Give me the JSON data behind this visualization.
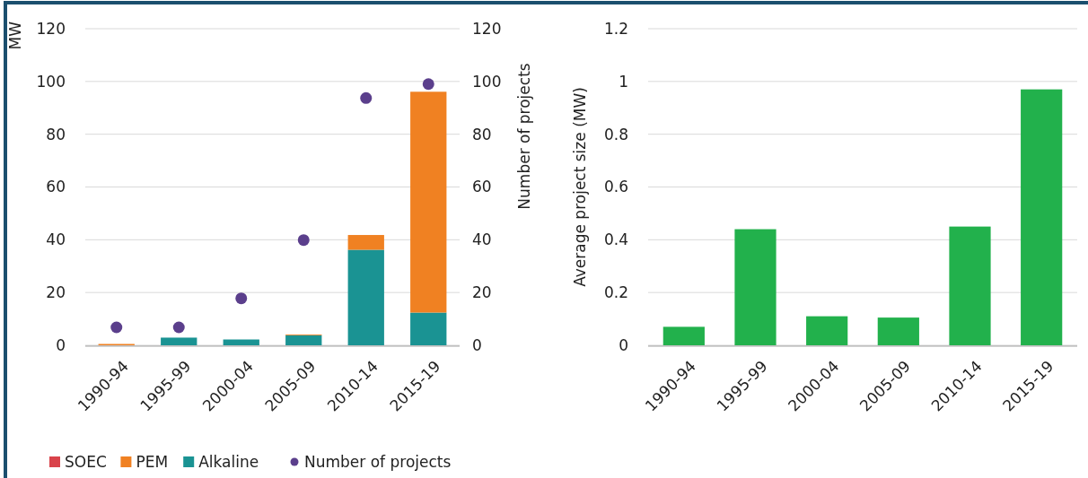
{
  "chart_data": [
    {
      "type": "bar",
      "stacked": true,
      "categories": [
        "1990-94",
        "1995-99",
        "2000-04",
        "2005-09",
        "2010-14",
        "2015-19"
      ],
      "ylabel": "MW",
      "y2label": "Number of projects",
      "ylim": [
        0,
        120
      ],
      "yticks": [
        0,
        20,
        40,
        60,
        80,
        100,
        120
      ],
      "y2lim": [
        0,
        120
      ],
      "y2ticks": [
        0,
        20,
        40,
        60,
        80,
        100,
        120
      ],
      "grid": "y",
      "legend": "bottom",
      "series": [
        {
          "name": "Alkaline",
          "color": "#1a9393",
          "values": [
            0,
            2.9,
            2.2,
            3.8,
            36.2,
            12.4
          ]
        },
        {
          "name": "PEM",
          "color": "#f08122",
          "values": [
            0.5,
            0,
            0,
            0.3,
            5.6,
            83.7
          ]
        },
        {
          "name": "SOEC",
          "color": "#d9434b",
          "values": [
            0,
            0,
            0,
            0,
            0,
            0
          ]
        },
        {
          "name": "Number of projects",
          "type": "scatter",
          "axis": "y2",
          "marker": "circle",
          "color": "#5b3f8c",
          "values": [
            6.8,
            6.8,
            17.8,
            39.9,
            93.7,
            99
          ]
        }
      ]
    },
    {
      "type": "bar",
      "categories": [
        "1990-94",
        "1995-99",
        "2000-04",
        "2005-09",
        "2010-14",
        "2015-19"
      ],
      "ylabel": "Average project size (MW)",
      "ylim": [
        0,
        1.2
      ],
      "yticks": [
        0,
        0.2,
        0.4,
        0.6,
        0.8,
        1,
        1.2
      ],
      "grid": "y",
      "color": "#22b14c",
      "values": [
        0.07,
        0.44,
        0.11,
        0.105,
        0.45,
        0.97
      ]
    }
  ]
}
